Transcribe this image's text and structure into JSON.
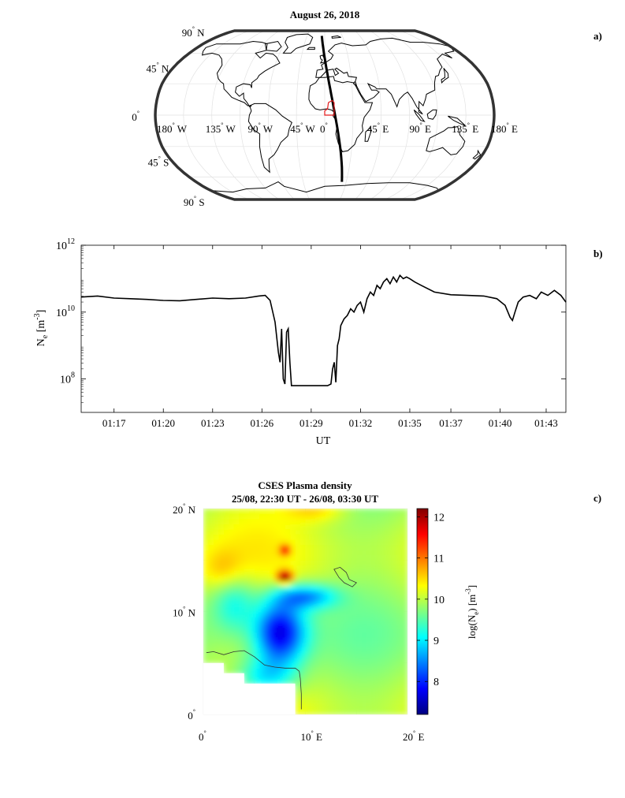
{
  "panels": {
    "a": {
      "letter": "a)",
      "title": "August 26, 2018",
      "lon_labels": [
        {
          "deg": "180",
          "hem": "W",
          "lon": -180
        },
        {
          "deg": "135",
          "hem": "W",
          "lon": -135
        },
        {
          "deg": "90",
          "hem": "W",
          "lon": -90
        },
        {
          "deg": "45",
          "hem": "W",
          "lon": -45
        },
        {
          "deg": "0",
          "hem": "",
          "lon": 0
        },
        {
          "deg": "45",
          "hem": "E",
          "lon": 45
        },
        {
          "deg": "90",
          "hem": "E",
          "lon": 90
        },
        {
          "deg": "135",
          "hem": "E",
          "lon": 135
        },
        {
          "deg": "180",
          "hem": "E",
          "lon": 180
        }
      ],
      "lat_labels": [
        {
          "deg": "90",
          "hem": "N",
          "lat": 90
        },
        {
          "deg": "45",
          "hem": "N",
          "lat": 45
        },
        {
          "deg": "0",
          "hem": "",
          "lat": 0
        },
        {
          "deg": "45",
          "hem": "S",
          "lat": -45
        },
        {
          "deg": "90",
          "hem": "S",
          "lat": -90
        }
      ],
      "track_color": "#000000",
      "highlight_color": "#e41a1c"
    },
    "b": {
      "letter": "b)",
      "xlabel": "UT",
      "ylabel_main": "N",
      "ylabel_sub": "e",
      "ylabel_unit_open": " [m",
      "ylabel_unit_exp": "-3",
      "ylabel_unit_close": "]",
      "chart_data": {
        "type": "line",
        "xlabel": "UT",
        "ylabel": "Ne [m-3]",
        "yscale": "log",
        "ylim": [
          10000000.0,
          1000000000000.0
        ],
        "xlim_minutes": [
          75,
          104.5
        ],
        "x_ticks": [
          "01:17",
          "01:20",
          "01:23",
          "01:26",
          "01:29",
          "01:32",
          "01:35",
          "01:37",
          "01:40",
          "01:43"
        ],
        "x_tick_minutes": [
          77,
          80,
          83,
          86,
          89,
          92,
          95,
          97.5,
          100.5,
          103.3
        ],
        "y_ticks": [
          {
            "base": "10",
            "exp": "8",
            "value": 100000000.0
          },
          {
            "base": "10",
            "exp": "10",
            "value": 10000000000.0
          },
          {
            "base": "10",
            "exp": "12",
            "value": 1000000000000.0
          }
        ],
        "series": [
          {
            "x_minutes": [
              75,
              76,
              77,
              78,
              79,
              80,
              81,
              82,
              83,
              84,
              85,
              85.8,
              86.2,
              86.5,
              86.8,
              87.0,
              87.1,
              87.2,
              87.3,
              87.4,
              87.5,
              87.6,
              87.7,
              87.8,
              88.0,
              88.5,
              89,
              89.5,
              90,
              90.2,
              90.3,
              90.4,
              90.5,
              90.6,
              90.7,
              90.8,
              90.9,
              91.0,
              91.2,
              91.4,
              91.6,
              91.8,
              92.0,
              92.2,
              92.4,
              92.6,
              92.8,
              93.0,
              93.2,
              93.4,
              93.6,
              93.8,
              94.0,
              94.2,
              94.4,
              94.6,
              94.8,
              95.0,
              95.3,
              95.7,
              96.5,
              97.5,
              98.5,
              99.5,
              100.3,
              100.8,
              101.1,
              101.25,
              101.4,
              101.6,
              101.9,
              102.3,
              102.7,
              103.0,
              103.4,
              103.8,
              104.2,
              104.5
            ],
            "log10_values": [
              10.45,
              10.48,
              10.42,
              10.4,
              10.38,
              10.35,
              10.34,
              10.38,
              10.42,
              10.4,
              10.42,
              10.48,
              10.5,
              10.35,
              9.7,
              8.8,
              8.5,
              9.5,
              8.0,
              7.85,
              9.4,
              9.5,
              8.5,
              7.8,
              7.8,
              7.8,
              7.8,
              7.8,
              7.8,
              7.85,
              8.3,
              8.5,
              7.9,
              9.0,
              9.2,
              9.6,
              9.7,
              9.8,
              9.9,
              10.1,
              10.0,
              10.2,
              10.3,
              10.0,
              10.4,
              10.6,
              10.5,
              10.8,
              10.7,
              10.9,
              11.0,
              10.85,
              11.05,
              10.9,
              11.1,
              11.0,
              11.05,
              11.0,
              10.9,
              10.8,
              10.6,
              10.52,
              10.5,
              10.48,
              10.4,
              10.2,
              9.85,
              9.75,
              10.0,
              10.3,
              10.45,
              10.5,
              10.4,
              10.6,
              10.5,
              10.65,
              10.5,
              10.3
            ]
          }
        ]
      }
    },
    "c": {
      "letter": "c)",
      "title_line1": "CSES Plasma density",
      "title_line2": "25/08, 22:30 UT - 26/08, 03:30 UT",
      "lat_labels": [
        {
          "deg": "20",
          "hem": "N",
          "lat": 20
        },
        {
          "deg": "10",
          "hem": "N",
          "lat": 10
        },
        {
          "deg": "0",
          "hem": "",
          "lat": 0
        }
      ],
      "lon_labels": [
        {
          "deg": "0",
          "hem": "",
          "lon": 0
        },
        {
          "deg": "10",
          "hem": "E",
          "lon": 10
        },
        {
          "deg": "20",
          "hem": "E",
          "lon": 20
        }
      ],
      "colorbar": {
        "label_open": "log(N",
        "label_sub": "e",
        "label_mid": ") [m",
        "label_exp": "-3",
        "label_close": "]",
        "ticks": [
          "12",
          "11",
          "10",
          "9",
          "8"
        ],
        "tick_values": [
          12,
          11,
          10,
          9,
          8
        ],
        "range": [
          7.2,
          12.2
        ],
        "colors": [
          "#000080",
          "#0000ff",
          "#0080ff",
          "#00ffff",
          "#80ff80",
          "#ffff00",
          "#ff8000",
          "#ff0000",
          "#800000"
        ]
      },
      "chart_data": {
        "type": "heatmap",
        "xlabel": "",
        "ylabel": "",
        "x_range_deg": [
          0,
          20
        ],
        "y_range_deg": [
          0,
          20
        ],
        "value_label": "log(Ne) [m-3]",
        "zlim": [
          7.2,
          12.2
        ]
      }
    }
  }
}
